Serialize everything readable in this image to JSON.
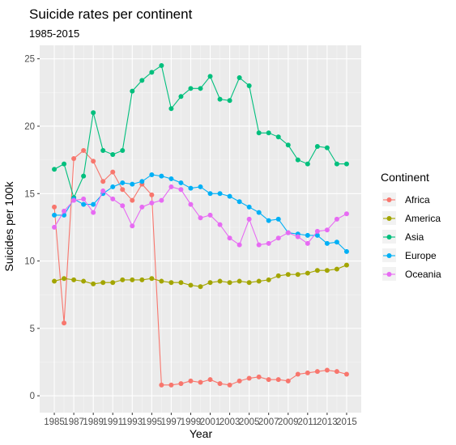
{
  "chart_data": {
    "type": "line",
    "title": "Suicide rates per continent",
    "subtitle": "1985-2015",
    "xlabel": "Year",
    "ylabel": "Suicides per 100k",
    "xlim": [
      1985,
      2015
    ],
    "ylim": [
      0,
      25
    ],
    "x_ticks": [
      1985,
      1987,
      1989,
      1991,
      1993,
      1995,
      1997,
      1999,
      2001,
      2003,
      2005,
      2007,
      2009,
      2011,
      2013,
      2015
    ],
    "y_ticks": [
      0,
      5,
      10,
      15,
      20,
      25
    ],
    "grid": true,
    "legend": {
      "title": "Continent",
      "position": "right"
    },
    "x": [
      1985,
      1986,
      1987,
      1988,
      1989,
      1990,
      1991,
      1992,
      1993,
      1994,
      1995,
      1996,
      1997,
      1998,
      1999,
      2000,
      2001,
      2002,
      2003,
      2004,
      2005,
      2006,
      2007,
      2008,
      2009,
      2010,
      2011,
      2012,
      2013,
      2014,
      2015
    ],
    "series": [
      {
        "name": "Africa",
        "color": "#F8766D",
        "values": [
          14.0,
          5.4,
          17.6,
          18.2,
          17.4,
          15.9,
          16.6,
          15.3,
          14.5,
          15.7,
          14.9,
          0.8,
          0.8,
          0.9,
          1.1,
          1.0,
          1.2,
          0.9,
          0.8,
          1.1,
          1.3,
          1.4,
          1.2,
          1.2,
          1.1,
          1.6,
          1.7,
          1.8,
          1.9,
          1.8,
          1.6
        ]
      },
      {
        "name": "America",
        "color": "#A3A500",
        "values": [
          8.5,
          8.7,
          8.6,
          8.5,
          8.3,
          8.4,
          8.4,
          8.6,
          8.6,
          8.6,
          8.7,
          8.5,
          8.4,
          8.4,
          8.2,
          8.1,
          8.4,
          8.5,
          8.4,
          8.5,
          8.4,
          8.5,
          8.6,
          8.9,
          9.0,
          9.0,
          9.1,
          9.3,
          9.3,
          9.4,
          9.7
        ]
      },
      {
        "name": "Asia",
        "color": "#00BF7D",
        "values": [
          16.8,
          17.2,
          14.7,
          16.3,
          21.0,
          18.2,
          17.9,
          18.2,
          22.6,
          23.4,
          24.0,
          24.5,
          21.3,
          22.2,
          22.8,
          22.8,
          23.7,
          22.0,
          21.9,
          23.6,
          23.0,
          19.5,
          19.5,
          19.2,
          18.6,
          17.5,
          17.2,
          18.5,
          18.4,
          17.2,
          17.2
        ]
      },
      {
        "name": "Europe",
        "color": "#00B0F6",
        "values": [
          13.4,
          13.4,
          14.6,
          14.2,
          14.2,
          15.0,
          15.5,
          15.8,
          15.7,
          15.9,
          16.4,
          16.3,
          16.1,
          15.8,
          15.4,
          15.5,
          15.0,
          15.0,
          14.8,
          14.4,
          14.0,
          13.6,
          13.0,
          13.1,
          12.1,
          12.0,
          11.9,
          11.9,
          11.3,
          11.4,
          10.7
        ]
      },
      {
        "name": "Oceania",
        "color": "#E76BF3",
        "values": [
          12.5,
          13.7,
          14.5,
          14.6,
          13.6,
          15.2,
          14.6,
          14.1,
          12.6,
          14.0,
          14.3,
          14.5,
          15.5,
          15.3,
          14.2,
          13.2,
          13.4,
          12.7,
          11.7,
          11.2,
          13.1,
          11.2,
          11.3,
          11.7,
          12.1,
          11.8,
          11.3,
          12.2,
          12.3,
          13.1,
          13.5
        ]
      }
    ]
  }
}
